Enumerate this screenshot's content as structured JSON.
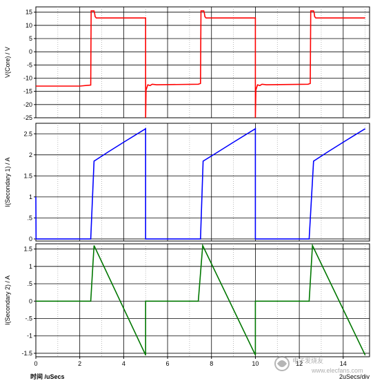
{
  "chart_data": [
    {
      "type": "line",
      "ylabel": "V(Core) / V",
      "xlim": [
        0,
        15.2
      ],
      "ylim": [
        -25,
        17
      ],
      "yticks": [
        15,
        10,
        5,
        0,
        -5,
        -10,
        -15,
        -20,
        -25
      ],
      "ytick_labels": [
        "15",
        "10",
        "5",
        "0",
        "-5",
        "-10",
        "-15",
        "-20",
        "-25"
      ],
      "grid": true,
      "series": [
        {
          "color": "#ff0000",
          "x": [
            0,
            2.0,
            2.5,
            2.52,
            2.65,
            2.68,
            2.7,
            2.75,
            5.0,
            5.0,
            5.02,
            5.06,
            5.1,
            5.2,
            5.3,
            5.5,
            7.4,
            7.5,
            7.52,
            7.65,
            7.68,
            7.7,
            7.75,
            10.0,
            10.0,
            10.02,
            10.06,
            10.1,
            10.2,
            10.3,
            10.5,
            12.4,
            12.5,
            12.52,
            12.65,
            12.68,
            12.7,
            12.75,
            15.0
          ],
          "y": [
            -13,
            -13,
            -12.6,
            15.5,
            15.5,
            14.5,
            13.3,
            12.8,
            12.8,
            -25,
            -14.5,
            -13.5,
            -12.5,
            -12.8,
            -12.3,
            -12.5,
            -12.3,
            -12,
            15.5,
            15.5,
            14.5,
            13.3,
            12.8,
            12.8,
            -25,
            -14.5,
            -13.5,
            -12.5,
            -12.8,
            -12.3,
            -12.5,
            -12.3,
            -12,
            15.5,
            15.5,
            14.5,
            13.3,
            12.8,
            12.8
          ]
        }
      ]
    },
    {
      "type": "line",
      "ylabel": "I(Secondary 1) / A",
      "xlim": [
        0,
        15.2
      ],
      "ylim": [
        -0.05,
        2.75
      ],
      "yticks": [
        2.5,
        2,
        1.5,
        1,
        0.5,
        0
      ],
      "ytick_labels": [
        "2.5",
        "2",
        "1.5",
        "1",
        ".5",
        "0"
      ],
      "grid": true,
      "series": [
        {
          "color": "#0000ff",
          "x": [
            0,
            0.01,
            0.05,
            2.5,
            2.65,
            3.3,
            4.0,
            5.0,
            5.0,
            7.5,
            7.62,
            8.3,
            9.0,
            10.0,
            10.0,
            12.45,
            12.65,
            13.3,
            14.0,
            15.0
          ],
          "y": [
            1.0,
            0,
            0,
            0,
            1.85,
            2.07,
            2.3,
            2.62,
            0,
            0,
            1.85,
            2.07,
            2.3,
            2.62,
            0,
            0,
            1.85,
            2.07,
            2.3,
            2.62
          ]
        }
      ]
    },
    {
      "type": "line",
      "ylabel": "I(Secondary 2) / A",
      "xlim": [
        0,
        15.2
      ],
      "ylim": [
        -1.6,
        1.65
      ],
      "yticks": [
        1.5,
        1,
        0.5,
        0,
        -0.5,
        -1,
        -1.5
      ],
      "ytick_labels": [
        "1.5",
        "1",
        ".5",
        "0",
        "-.5",
        "-1",
        "-1.5"
      ],
      "xticks": [
        0,
        2,
        4,
        6,
        8,
        10,
        12,
        14
      ],
      "xtick_labels": [
        "0",
        "2",
        "4",
        "6",
        "8",
        "10",
        "12",
        "14"
      ],
      "xlabel": "时间 /uSecs",
      "grid": true,
      "series": [
        {
          "color": "#007700",
          "x": [
            0,
            2.5,
            2.65,
            5.0,
            5.0,
            7.4,
            7.6,
            10.0,
            10.0,
            12.45,
            12.6,
            15.0
          ],
          "y": [
            0,
            0,
            1.6,
            -1.55,
            0,
            0,
            1.6,
            -1.55,
            0,
            0,
            1.6,
            -1.55
          ]
        }
      ]
    }
  ],
  "bottom_right_label": "2uSecs/div",
  "watermark": "电子发烧友",
  "watermark_url": "www.elecfans.com"
}
